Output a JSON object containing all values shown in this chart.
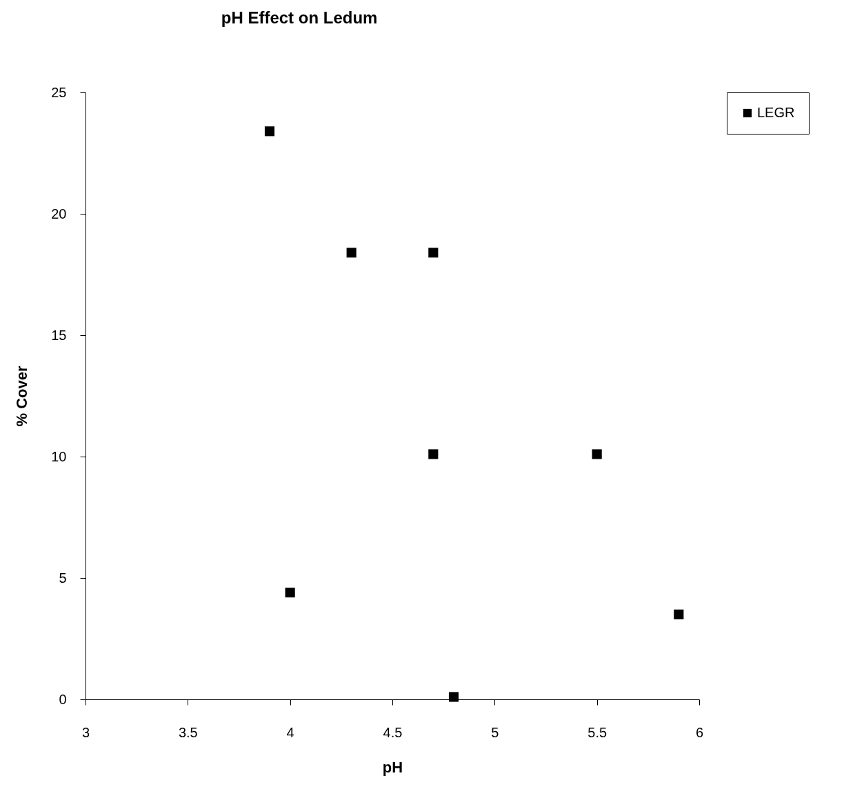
{
  "chart_data": {
    "type": "scatter",
    "title": "pH Effect on Ledum",
    "xlabel": "pH",
    "ylabel": "% Cover",
    "x": [
      3.9,
      4.3,
      4.7,
      4.0,
      4.7,
      5.5,
      4.8,
      5.9
    ],
    "series": [
      {
        "name": "LEGR",
        "color": "#000000",
        "values": [
          23.4,
          18.4,
          18.4,
          4.4,
          10.1,
          10.1,
          0.1,
          3.5
        ]
      }
    ],
    "xlim": [
      3,
      6
    ],
    "xticks": [
      3,
      3.5,
      4,
      4.5,
      5,
      5.5,
      6
    ],
    "ylim": [
      0,
      25
    ],
    "yticks": [
      0,
      5,
      10,
      15,
      20,
      25
    ],
    "grid": false,
    "legend": "right",
    "marker": "square"
  }
}
